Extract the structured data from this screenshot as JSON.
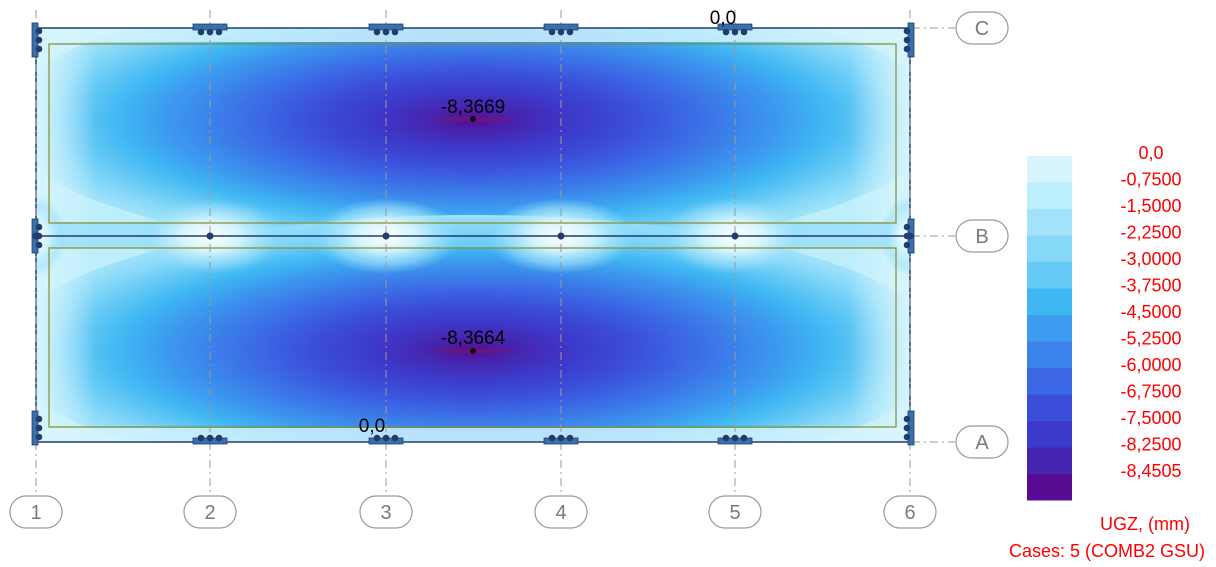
{
  "contour_map": {
    "title_quantity": "UGZ, (mm)",
    "case": "Cases: 5 (COMB2 GSU)",
    "value_labels": [
      {
        "id": "top-max",
        "text": "-8,3669"
      },
      {
        "id": "bottom-max",
        "text": "-8,3664"
      },
      {
        "id": "top-zero",
        "text": "0,0"
      },
      {
        "id": "bottom-zero",
        "text": "0,0"
      }
    ]
  },
  "grid_axes": {
    "columns": [
      "1",
      "2",
      "3",
      "4",
      "5",
      "6"
    ],
    "rows": [
      "C",
      "B",
      "A"
    ]
  },
  "legend": {
    "values": [
      "0,0",
      "-0,7500",
      "-1,5000",
      "-2,2500",
      "-3,0000",
      "-3,7500",
      "-4,5000",
      "-5,2500",
      "-6,0000",
      "-6,7500",
      "-7,5000",
      "-8,2500",
      "-8,4505"
    ],
    "colors": [
      "#d8f5fd",
      "#bdeefc",
      "#a2e3fa",
      "#86d8f8",
      "#64c9f5",
      "#3fb7f3",
      "#3c9cef",
      "#3b82ea",
      "#3b67e4",
      "#3b4ed9",
      "#3c3acb",
      "#4626b1",
      "#570c93"
    ],
    "text_color": "#ff0000"
  }
}
